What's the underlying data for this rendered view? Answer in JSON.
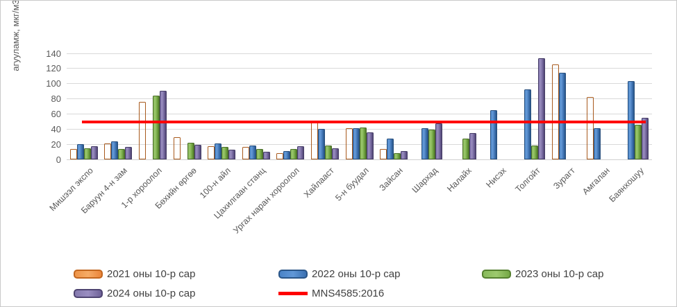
{
  "chart_data": {
    "type": "bar",
    "title": "",
    "ylabel": "агууламж,  мкг/м3",
    "ylim": [
      0,
      140
    ],
    "yticks": [
      0,
      20,
      40,
      60,
      80,
      100,
      120,
      140
    ],
    "grid": true,
    "legend_position": "bottom",
    "categories": [
      "Мишээл экспо",
      "Баруун 4-н зам",
      "1-р хороолол",
      "Бөхийн өргөө",
      "100-н айл",
      "Цахилгаан станц",
      "Ургах наран хороолол",
      "Хайлааст",
      "5-н буудал",
      "Зайсан",
      "Шархад",
      "Налайх",
      "Нисэх",
      "Толгойт",
      "Зурагт",
      "Амгалан",
      "Баянхошуу"
    ],
    "series": [
      {
        "name": "2021 оны 10-р сар",
        "color": "#ED7D31",
        "values": [
          14,
          21,
          76,
          29,
          17,
          16,
          8,
          48,
          41,
          14,
          null,
          null,
          null,
          null,
          125,
          82,
          null
        ]
      },
      {
        "name": "2022 оны 10-р сар",
        "color": "#4472C4",
        "values": [
          20,
          24,
          null,
          null,
          21,
          18,
          11,
          40,
          41,
          27,
          41,
          null,
          65,
          92,
          114,
          41,
          103
        ]
      },
      {
        "name": "2023 оны 10-р сар",
        "color": "#70AD47",
        "values": [
          15,
          14,
          84,
          22,
          16,
          14,
          14,
          18,
          42,
          8,
          39,
          27,
          null,
          18,
          null,
          null,
          46
        ]
      },
      {
        "name": "2024 оны 10-р сар",
        "color": "#8064A2",
        "values": [
          17,
          16,
          90,
          19,
          13,
          10,
          17,
          15,
          36,
          11,
          47,
          35,
          null,
          133,
          null,
          null,
          55
        ]
      }
    ],
    "ref_line": {
      "name": "MNS4585:2016",
      "value": 50,
      "color": "#FF0000"
    }
  }
}
